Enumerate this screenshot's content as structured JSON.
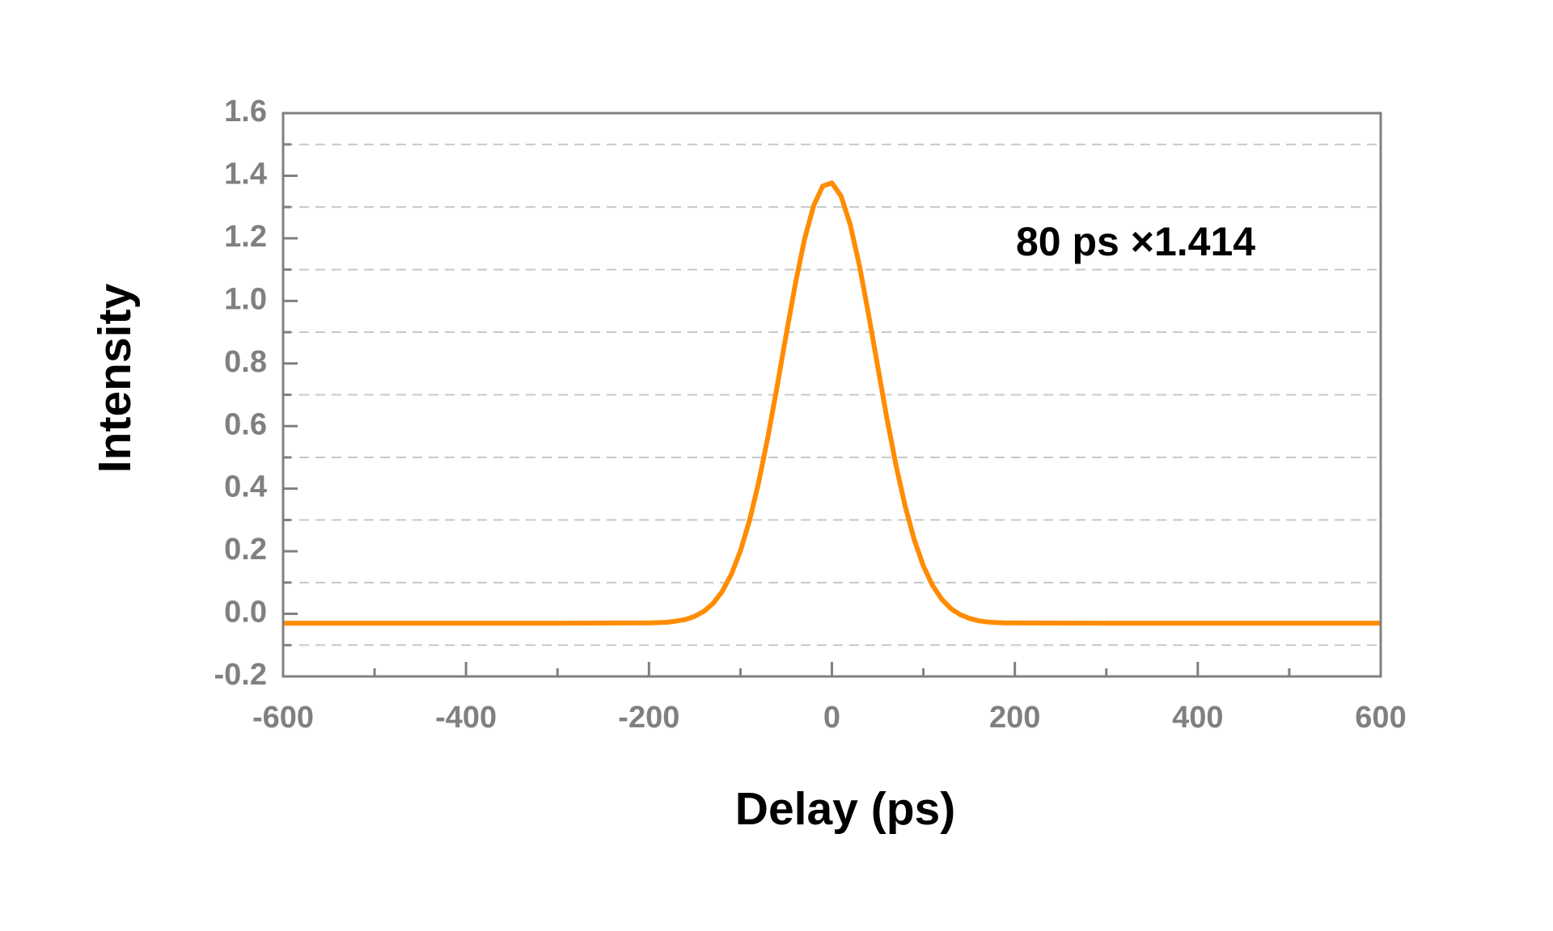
{
  "chart_data": {
    "type": "line",
    "xlabel": "Delay (ps)",
    "ylabel": "Intensity",
    "annotation": "80 ps ×1.414",
    "xlim": [
      -600,
      600
    ],
    "xticks": [
      -600,
      -400,
      -200,
      0,
      200,
      400,
      600
    ],
    "minor_xticks": [
      -500,
      -300,
      -100,
      100,
      300,
      500
    ],
    "ylim": [
      -0.2,
      1.6
    ],
    "yticks": [
      -0.2,
      {
        "value": 0,
        "label": "0.0"
      },
      0.2,
      0.4,
      0.6,
      0.8,
      {
        "value": 1,
        "label": "1.0"
      },
      1.2,
      1.4,
      1.6
    ],
    "minor_yticks": [
      -0.1,
      0.1,
      0.3,
      0.5,
      0.7,
      0.9,
      1.1,
      1.3,
      1.5
    ],
    "grid": true,
    "series": [
      {
        "color": "#ff8c00",
        "x": [
          -600,
          -500,
          -400,
          -300,
          -200,
          -190,
          -180,
          -170,
          -160,
          -150,
          -140,
          -130,
          -120,
          -110,
          -100,
          -90,
          -80,
          -70,
          -60,
          -50,
          -40,
          -30,
          -20,
          -10,
          0,
          10,
          20,
          30,
          40,
          50,
          60,
          70,
          80,
          90,
          100,
          110,
          120,
          130,
          140,
          150,
          160,
          170,
          180,
          190,
          200,
          300,
          400,
          500,
          600
        ],
        "values": [
          -0.03,
          -0.03,
          -0.03,
          -0.03,
          -0.029,
          -0.028,
          -0.027,
          -0.023,
          -0.018,
          -0.008,
          0.008,
          0.033,
          0.071,
          0.126,
          0.201,
          0.299,
          0.421,
          0.565,
          0.725,
          0.892,
          1.054,
          1.196,
          1.304,
          1.367,
          1.377,
          1.335,
          1.244,
          1.114,
          0.958,
          0.792,
          0.627,
          0.476,
          0.345,
          0.237,
          0.153,
          0.091,
          0.047,
          0.017,
          -0.002,
          -0.014,
          -0.022,
          -0.026,
          -0.028,
          -0.029,
          -0.029,
          -0.03,
          -0.03,
          -0.03,
          -0.03
        ]
      }
    ]
  }
}
